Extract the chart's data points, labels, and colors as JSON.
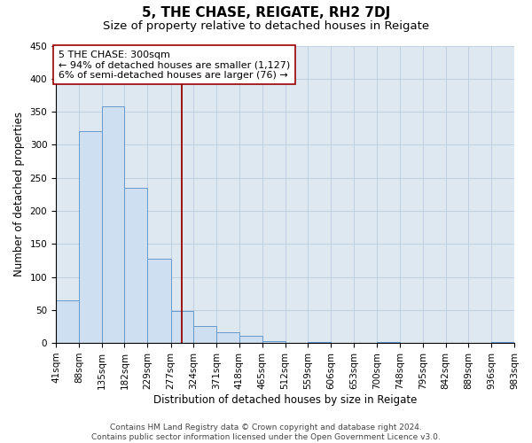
{
  "title": "5, THE CHASE, REIGATE, RH2 7DJ",
  "subtitle": "Size of property relative to detached houses in Reigate",
  "xlabel": "Distribution of detached houses by size in Reigate",
  "ylabel": "Number of detached properties",
  "footer_lines": [
    "Contains HM Land Registry data © Crown copyright and database right 2024.",
    "Contains public sector information licensed under the Open Government Licence v3.0."
  ],
  "bins": [
    41,
    88,
    135,
    182,
    229,
    277,
    324,
    371,
    418,
    465,
    512,
    559,
    606,
    653,
    700,
    748,
    795,
    842,
    889,
    936,
    983
  ],
  "counts": [
    65,
    320,
    358,
    235,
    127,
    48,
    25,
    16,
    11,
    3,
    0,
    2,
    0,
    0,
    2,
    0,
    0,
    0,
    0,
    2
  ],
  "bar_color": "#cddff0",
  "bar_edge_color": "#6699cc",
  "vertical_line_x": 300,
  "vertical_line_color": "#990000",
  "annotation_line1": "5 THE CHASE: 300sqm",
  "annotation_line2": "← 94% of detached houses are smaller (1,127)",
  "annotation_line3": "6% of semi-detached houses are larger (76) →",
  "annotation_box_facecolor": "#ffffff",
  "annotation_box_edgecolor": "#990000",
  "ylim": [
    0,
    450
  ],
  "yticks": [
    0,
    50,
    100,
    150,
    200,
    250,
    300,
    350,
    400,
    450
  ],
  "grid_color": "#bbccdd",
  "bg_color": "#dde8f0",
  "title_fontsize": 11,
  "subtitle_fontsize": 9.5,
  "xlabel_fontsize": 8.5,
  "ylabel_fontsize": 8.5,
  "tick_fontsize": 7.5,
  "footer_fontsize": 6.5,
  "annotation_fontsize": 8
}
